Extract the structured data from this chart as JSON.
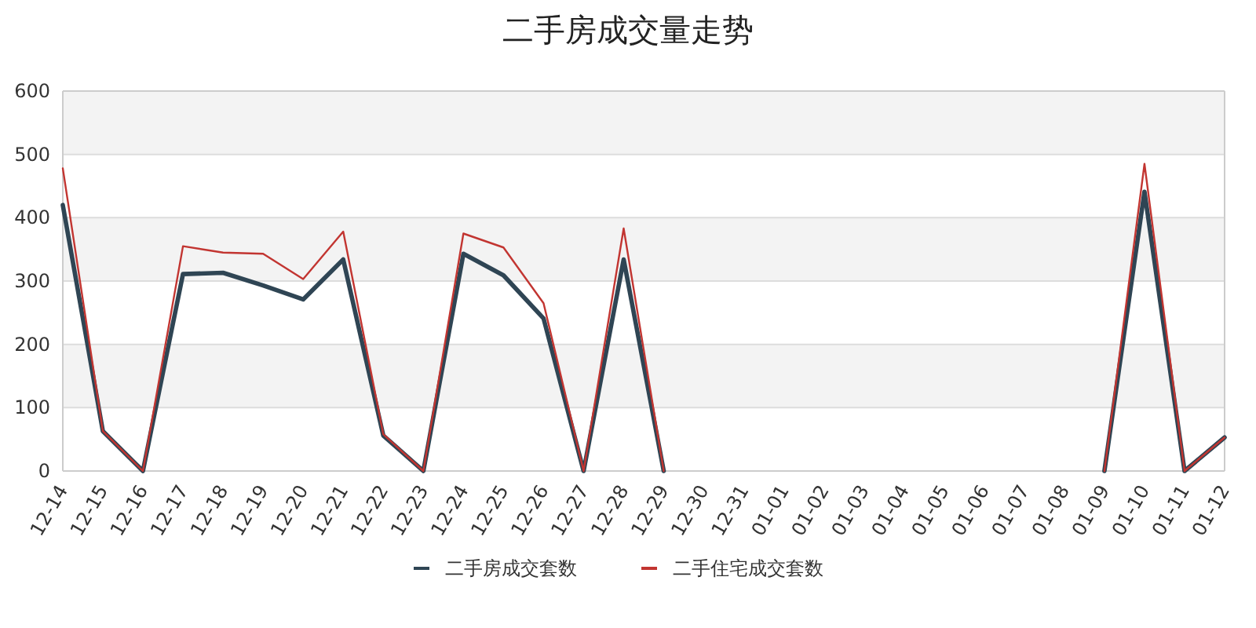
{
  "chart_data": {
    "type": "line",
    "title": "二手房成交量走势",
    "categories": [
      "12-14",
      "12-15",
      "12-16",
      "12-17",
      "12-18",
      "12-19",
      "12-20",
      "12-21",
      "12-22",
      "12-23",
      "12-24",
      "12-25",
      "12-26",
      "12-27",
      "12-28",
      "12-29",
      "12-30",
      "12-31",
      "01-01",
      "01-02",
      "01-03",
      "01-04",
      "01-05",
      "01-06",
      "01-07",
      "01-08",
      "01-09",
      "01-10",
      "01-11",
      "01-12"
    ],
    "series": [
      {
        "name": "二手房成交套数",
        "color": "#2f4554",
        "values": [
          420,
          63,
          0,
          311,
          313,
          293,
          271,
          334,
          56,
          0,
          343,
          309,
          241,
          0,
          334,
          0,
          null,
          null,
          null,
          null,
          null,
          null,
          null,
          null,
          null,
          null,
          0,
          441,
          0,
          53
        ]
      },
      {
        "name": "二手住宅成交套数",
        "color": "#c23531",
        "values": [
          478,
          63,
          0,
          355,
          345,
          343,
          303,
          378,
          58,
          0,
          375,
          353,
          265,
          0,
          383,
          0,
          null,
          null,
          null,
          null,
          null,
          null,
          null,
          null,
          null,
          null,
          0,
          485,
          0,
          53
        ]
      }
    ],
    "ylim": [
      0,
      600
    ],
    "yticks": [
      0,
      100,
      200,
      300,
      400,
      500,
      600
    ],
    "grid": "y",
    "legend": "bottom",
    "marker": "none",
    "line_style": "solid"
  }
}
